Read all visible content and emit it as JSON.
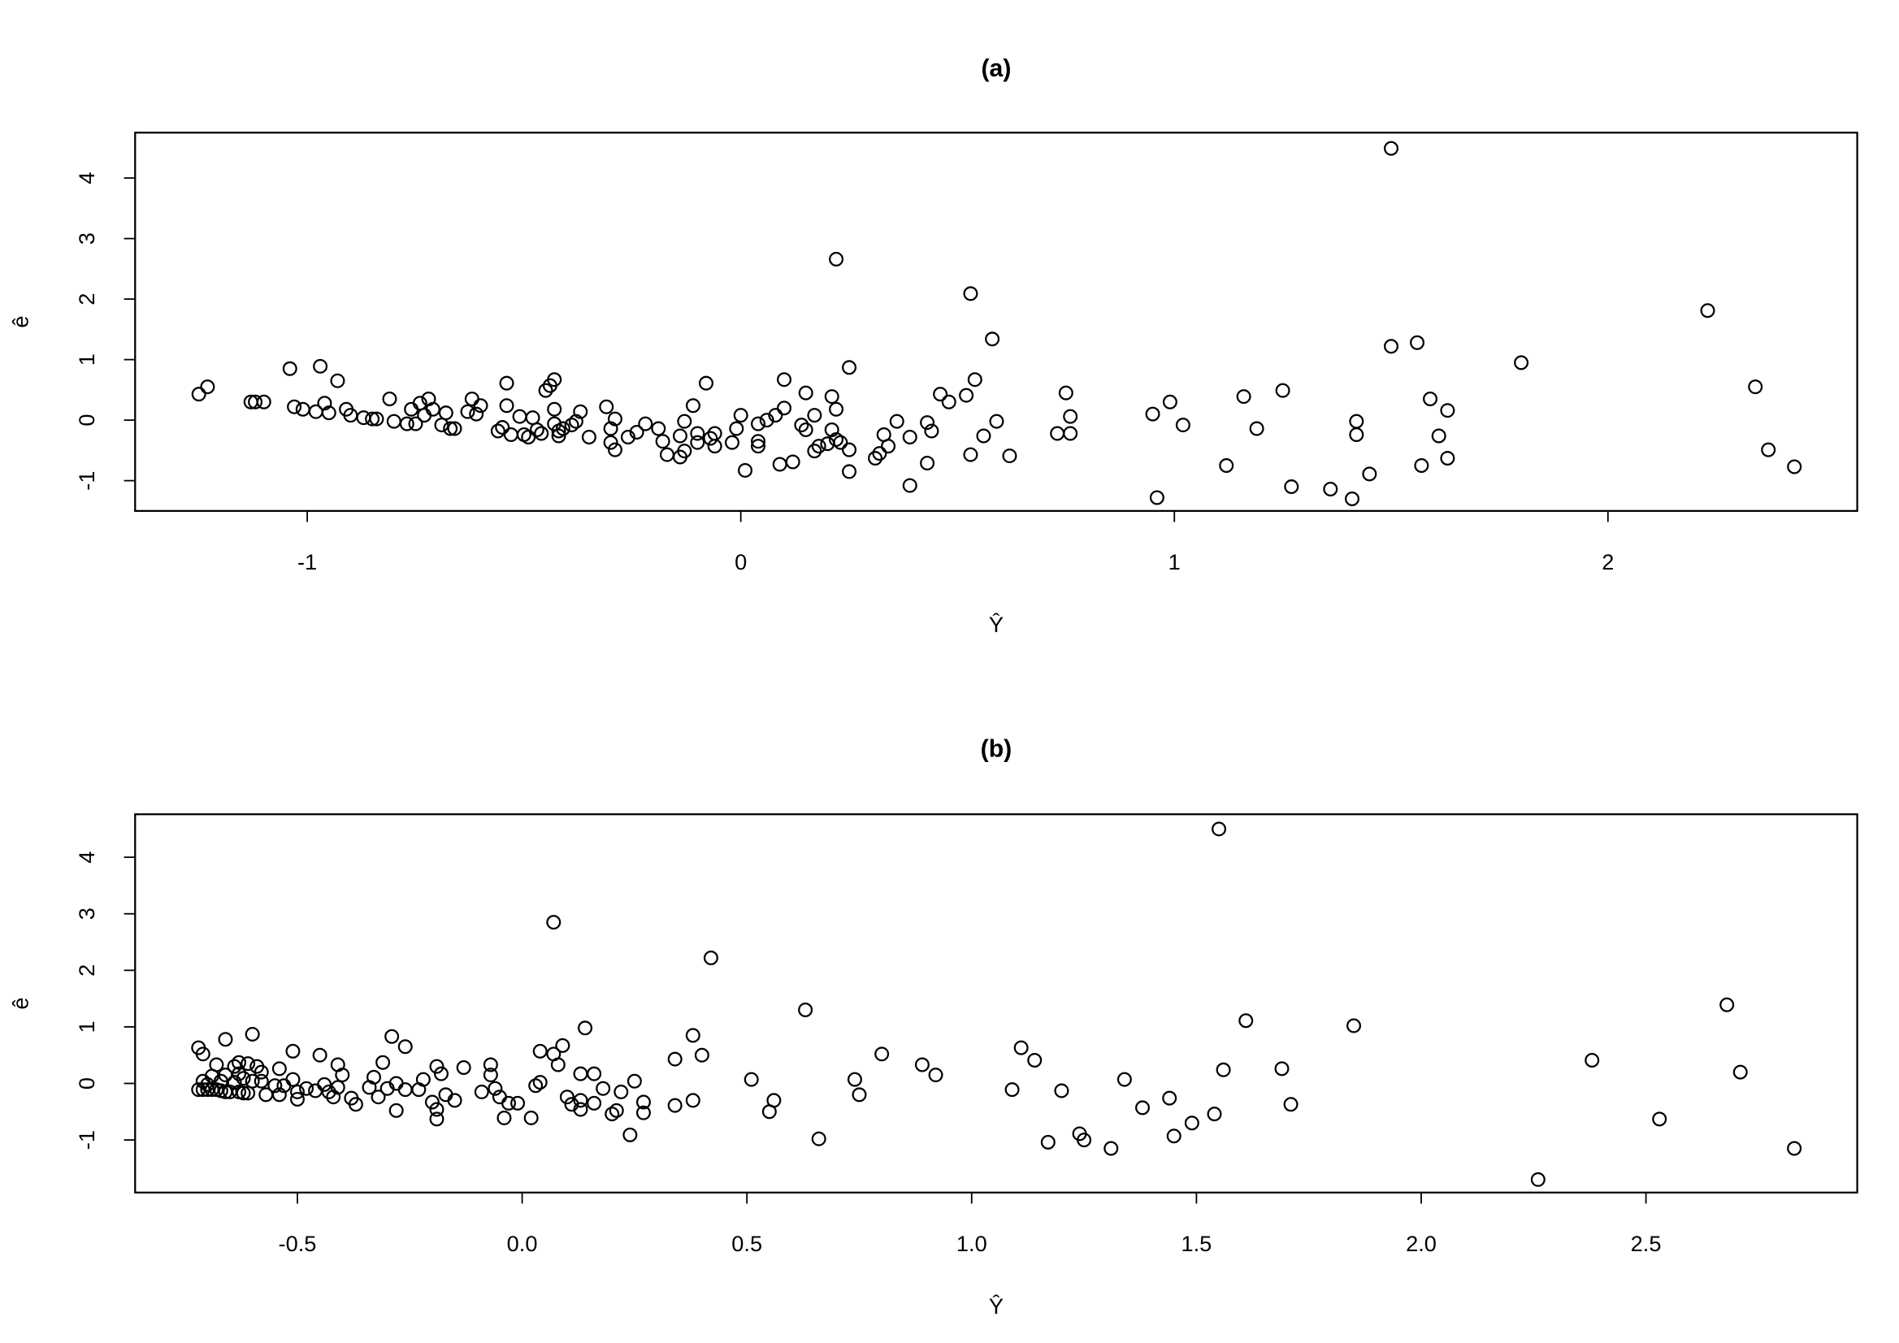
{
  "chart_data": [
    {
      "type": "scatter",
      "title": "(a)",
      "x_label": "Ŷ",
      "y_label": "ê",
      "color": "#000000",
      "xlim": [
        -1.397,
        2.575
      ],
      "ylim": [
        -1.5,
        4.75
      ],
      "xticks": [
        -1,
        0,
        1,
        2
      ],
      "yticks": [
        -1,
        0,
        1,
        2,
        3,
        4
      ],
      "x": [
        -1.25,
        -1.23,
        -1.13,
        -1.12,
        -1.1,
        -1.04,
        -1.03,
        -1.01,
        -0.98,
        -0.97,
        -0.96,
        -0.95,
        -0.93,
        -0.91,
        -0.9,
        -0.87,
        -0.85,
        -0.84,
        -0.81,
        -0.8,
        -0.77,
        -0.76,
        -0.75,
        -0.74,
        -0.73,
        -0.72,
        -0.71,
        -0.69,
        -0.68,
        -0.67,
        -0.66,
        -0.63,
        -0.62,
        -0.6,
        -0.61,
        -0.56,
        -0.55,
        -0.54,
        -0.54,
        -0.53,
        -0.51,
        -0.5,
        -0.49,
        -0.48,
        -0.47,
        -0.46,
        -0.45,
        -0.44,
        -0.43,
        -0.43,
        -0.43,
        -0.42,
        -0.42,
        -0.41,
        -0.39,
        -0.38,
        -0.37,
        -0.35,
        -0.31,
        -0.3,
        -0.3,
        -0.29,
        -0.29,
        -0.26,
        -0.24,
        -0.22,
        -0.19,
        -0.18,
        -0.17,
        -0.14,
        -0.14,
        -0.13,
        -0.13,
        -0.11,
        -0.1,
        -0.1,
        -0.08,
        -0.07,
        -0.06,
        -0.06,
        -0.02,
        -0.01,
        0.0,
        0.01,
        0.04,
        0.04,
        0.04,
        0.06,
        0.08,
        0.09,
        0.1,
        0.1,
        0.12,
        0.14,
        0.15,
        0.15,
        0.17,
        0.17,
        0.18,
        0.2,
        0.21,
        0.21,
        0.22,
        0.22,
        0.22,
        0.23,
        0.25,
        0.25,
        0.25,
        0.31,
        0.32,
        0.33,
        0.34,
        0.36,
        0.39,
        0.39,
        0.43,
        0.43,
        0.44,
        0.46,
        0.48,
        0.52,
        0.53,
        0.53,
        0.54,
        0.56,
        0.58,
        0.59,
        0.62,
        0.73,
        0.75,
        0.76,
        0.76,
        0.95,
        0.96,
        0.99,
        1.02,
        1.12,
        1.16,
        1.19,
        1.25,
        1.27,
        1.36,
        1.41,
        1.42,
        1.42,
        1.45,
        1.5,
        1.5,
        1.56,
        1.57,
        1.59,
        1.61,
        1.63,
        1.63,
        1.8,
        2.23,
        2.34,
        2.37,
        2.43
      ],
      "values": [
        0.43,
        0.55,
        0.3,
        0.3,
        0.3,
        0.85,
        0.22,
        0.18,
        0.14,
        0.89,
        0.28,
        0.12,
        0.65,
        0.18,
        0.08,
        0.04,
        0.02,
        0.02,
        0.35,
        -0.02,
        -0.06,
        0.18,
        -0.06,
        0.28,
        0.08,
        0.35,
        0.18,
        -0.08,
        0.12,
        -0.14,
        -0.14,
        0.14,
        0.35,
        0.24,
        0.1,
        -0.18,
        -0.12,
        0.61,
        0.24,
        -0.24,
        0.06,
        -0.24,
        -0.28,
        0.04,
        -0.16,
        -0.22,
        0.49,
        0.57,
        0.18,
        0.67,
        -0.06,
        -0.18,
        -0.26,
        -0.14,
        -0.08,
        -0.02,
        0.14,
        -0.28,
        0.22,
        -0.37,
        -0.14,
        -0.49,
        0.02,
        -0.28,
        -0.2,
        -0.06,
        -0.14,
        -0.35,
        -0.57,
        -0.26,
        -0.61,
        -0.51,
        -0.02,
        0.24,
        -0.22,
        -0.37,
        0.61,
        -0.3,
        -0.22,
        -0.43,
        -0.37,
        -0.14,
        0.08,
        -0.83,
        -0.35,
        -0.43,
        -0.06,
        0.0,
        0.08,
        -0.73,
        0.67,
        0.2,
        -0.69,
        -0.08,
        0.45,
        -0.16,
        0.08,
        -0.51,
        -0.43,
        -0.39,
        -0.16,
        0.39,
        0.18,
        2.66,
        -0.32,
        -0.37,
        0.87,
        -0.49,
        -0.85,
        -0.63,
        -0.55,
        -0.24,
        -0.43,
        -0.02,
        -1.08,
        -0.28,
        -0.04,
        -0.71,
        -0.18,
        0.43,
        0.3,
        0.41,
        -0.57,
        2.09,
        0.67,
        -0.26,
        1.34,
        -0.02,
        -0.59,
        -0.22,
        0.45,
        0.06,
        -0.22,
        0.1,
        -1.28,
        0.3,
        -0.08,
        -0.75,
        0.39,
        -0.14,
        0.49,
        -1.1,
        -1.14,
        -1.3,
        -0.02,
        -0.24,
        -0.89,
        1.22,
        4.49,
        1.28,
        -0.75,
        0.35,
        -0.26,
        -0.63,
        0.16,
        0.95,
        1.81,
        0.55,
        -0.49,
        -0.77
      ]
    },
    {
      "type": "scatter",
      "title": "(b)",
      "x_label": "Ŷ",
      "y_label": "ê",
      "color": "#000000",
      "xlim": [
        -0.861,
        2.97
      ],
      "ylim": [
        -1.93,
        4.76
      ],
      "xticks": [
        -0.5,
        {
          "value": 0,
          "label": "0.0"
        },
        0.5,
        {
          "value": 1,
          "label": "1.0"
        },
        1.5,
        {
          "value": 2,
          "label": "2.0"
        },
        2.5
      ],
      "yticks": [
        -1,
        0,
        1,
        2,
        3,
        4
      ],
      "x": [
        -0.72,
        -0.71,
        -0.72,
        -0.71,
        -0.7,
        -0.69,
        -0.68,
        -0.67,
        -0.66,
        -0.65,
        -0.63,
        -0.62,
        -0.61,
        -0.71,
        -0.7,
        -0.69,
        -0.68,
        -0.67,
        -0.66,
        -0.66,
        -0.64,
        -0.64,
        -0.63,
        -0.63,
        -0.62,
        -0.61,
        -0.6,
        -0.6,
        -0.59,
        -0.58,
        -0.58,
        -0.57,
        -0.55,
        -0.54,
        -0.54,
        -0.53,
        -0.51,
        -0.51,
        -0.5,
        -0.5,
        -0.48,
        -0.46,
        -0.45,
        -0.44,
        -0.43,
        -0.42,
        -0.41,
        -0.41,
        -0.4,
        -0.38,
        -0.37,
        -0.34,
        -0.33,
        -0.32,
        -0.31,
        -0.3,
        -0.29,
        -0.28,
        -0.28,
        -0.26,
        -0.26,
        -0.23,
        -0.22,
        -0.2,
        -0.19,
        -0.19,
        -0.19,
        -0.18,
        -0.17,
        -0.15,
        -0.13,
        -0.09,
        -0.07,
        -0.07,
        -0.06,
        -0.05,
        -0.04,
        -0.03,
        -0.01,
        0.02,
        0.03,
        0.04,
        0.04,
        0.07,
        0.07,
        0.08,
        0.09,
        0.1,
        0.11,
        0.13,
        0.13,
        0.13,
        0.14,
        0.16,
        0.16,
        0.18,
        0.2,
        0.21,
        0.22,
        0.24,
        0.25,
        0.27,
        0.27,
        0.34,
        0.34,
        0.38,
        0.38,
        0.4,
        0.42,
        0.51,
        0.55,
        0.56,
        0.63,
        0.66,
        0.74,
        0.75,
        0.8,
        0.89,
        0.92,
        1.09,
        1.11,
        1.14,
        1.17,
        1.2,
        1.24,
        1.25,
        1.31,
        1.34,
        1.38,
        1.44,
        1.45,
        1.49,
        1.54,
        1.55,
        1.56,
        1.61,
        1.69,
        1.71,
        1.85,
        2.26,
        2.38,
        2.53,
        2.68,
        2.71,
        2.83
      ],
      "values": [
        0.63,
        0.52,
        -0.11,
        -0.11,
        -0.11,
        -0.11,
        -0.11,
        -0.13,
        -0.15,
        -0.15,
        -0.15,
        -0.17,
        -0.17,
        0.04,
        -0.02,
        0.13,
        0.33,
        0.04,
        0.78,
        0.15,
        0.3,
        0.02,
        0.17,
        0.37,
        0.09,
        0.35,
        0.87,
        0.04,
        0.3,
        0.2,
        0.04,
        -0.2,
        -0.04,
        0.26,
        -0.2,
        -0.04,
        0.57,
        0.07,
        -0.28,
        -0.15,
        -0.09,
        -0.13,
        0.5,
        -0.02,
        -0.15,
        -0.24,
        0.33,
        -0.07,
        0.15,
        -0.26,
        -0.37,
        -0.07,
        0.11,
        -0.24,
        0.37,
        -0.09,
        0.83,
        0.0,
        -0.48,
        0.65,
        -0.11,
        -0.11,
        0.07,
        -0.33,
        0.3,
        -0.63,
        -0.46,
        0.17,
        -0.2,
        -0.3,
        0.28,
        -0.15,
        0.15,
        0.33,
        -0.09,
        -0.24,
        -0.61,
        -0.35,
        -0.35,
        -0.61,
        -0.04,
        0.57,
        0.02,
        2.85,
        0.52,
        0.33,
        0.67,
        -0.24,
        -0.37,
        0.17,
        -0.46,
        -0.3,
        0.98,
        -0.35,
        0.17,
        -0.09,
        -0.54,
        -0.48,
        -0.15,
        -0.91,
        0.04,
        -0.52,
        -0.33,
        0.43,
        -0.39,
        0.85,
        -0.3,
        0.5,
        2.22,
        0.07,
        -0.5,
        -0.3,
        1.3,
        -0.98,
        0.07,
        -0.2,
        0.52,
        0.33,
        0.15,
        -0.11,
        0.63,
        0.41,
        -1.04,
        -0.13,
        -0.89,
        -1.0,
        -1.15,
        0.07,
        -0.43,
        -0.26,
        -0.93,
        -0.7,
        -0.54,
        4.5,
        0.24,
        1.11,
        0.26,
        -0.37,
        1.02,
        -1.7,
        0.41,
        -0.63,
        1.39,
        0.2,
        -1.15
      ]
    }
  ]
}
